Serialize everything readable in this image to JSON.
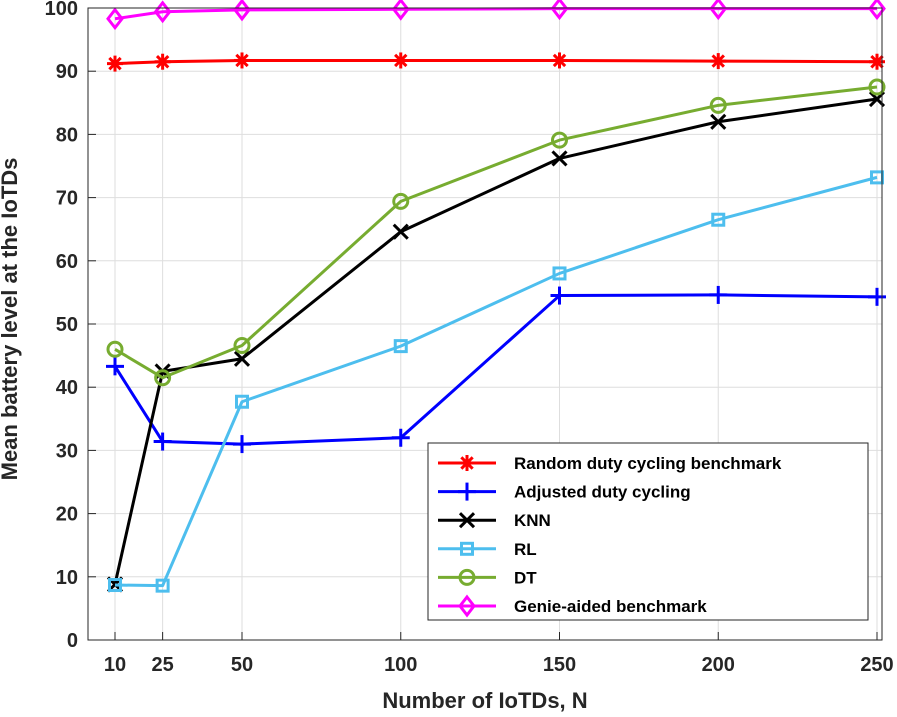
{
  "chart_data": {
    "type": "line",
    "xlabel": "Number of IoTDs, N",
    "ylabel": "Mean battery level at the IoTDs",
    "x": [
      10,
      25,
      50,
      100,
      150,
      200,
      250
    ],
    "xticks": [
      10,
      25,
      50,
      100,
      150,
      200,
      250
    ],
    "yticks": [
      0,
      10,
      20,
      30,
      40,
      50,
      60,
      70,
      80,
      90,
      100
    ],
    "xlim": [
      0,
      250
    ],
    "ylim": [
      0,
      100
    ],
    "grid": true,
    "legend_position": "bottom-right",
    "series": [
      {
        "name": "Random duty cycling benchmark",
        "color": "#ff0000",
        "marker": "asterisk",
        "values": [
          91.2,
          91.5,
          91.7,
          91.7,
          91.7,
          91.6,
          91.5
        ]
      },
      {
        "name": "Adjusted duty cycling",
        "color": "#0000ff",
        "marker": "plus",
        "values": [
          43.3,
          31.4,
          31.0,
          32.0,
          54.5,
          54.6,
          54.3
        ]
      },
      {
        "name": "KNN",
        "color": "#000000",
        "marker": "x",
        "values": [
          8.8,
          42.5,
          44.5,
          64.6,
          76.2,
          82.0,
          85.6
        ]
      },
      {
        "name": "RL",
        "color": "#4dbeee",
        "marker": "square",
        "values": [
          8.7,
          8.6,
          37.7,
          46.5,
          58.0,
          66.5,
          73.2
        ]
      },
      {
        "name": "DT",
        "color": "#77ac30",
        "marker": "circle",
        "values": [
          46.0,
          41.5,
          46.6,
          69.4,
          79.1,
          84.6,
          87.5
        ]
      },
      {
        "name": "Genie-aided benchmark",
        "color": "#ff00ff",
        "marker": "diamond",
        "values": [
          98.3,
          99.4,
          99.7,
          99.8,
          99.9,
          99.9,
          99.9
        ]
      }
    ]
  }
}
